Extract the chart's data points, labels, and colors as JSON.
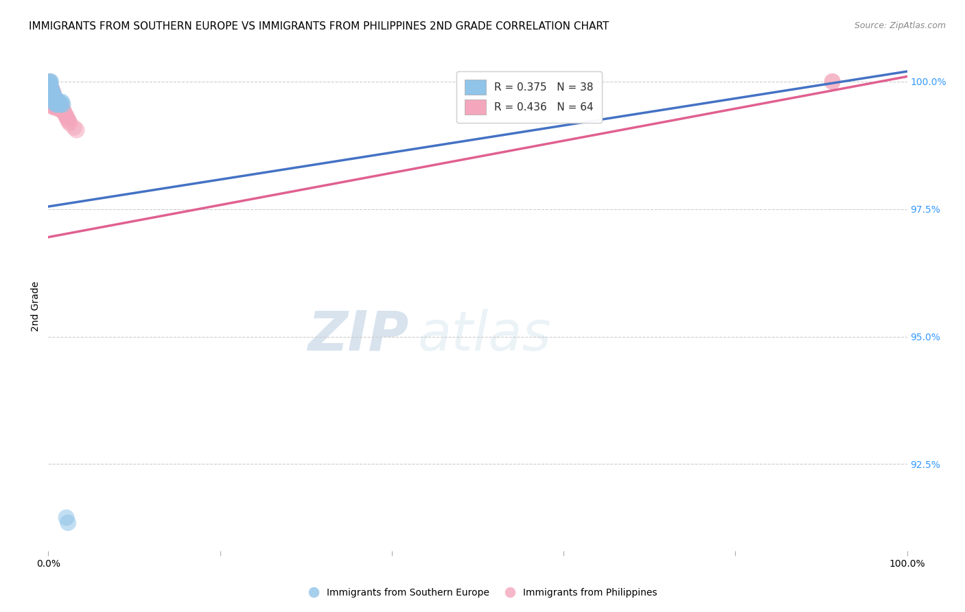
{
  "title": "IMMIGRANTS FROM SOUTHERN EUROPE VS IMMIGRANTS FROM PHILIPPINES 2ND GRADE CORRELATION CHART",
  "source": "Source: ZipAtlas.com",
  "ylabel": "2nd Grade",
  "xlim": [
    0.0,
    1.0
  ],
  "ylim": [
    0.908,
    1.004
  ],
  "ytick_labels_right": [
    "92.5%",
    "95.0%",
    "97.5%",
    "100.0%"
  ],
  "ytick_vals_right": [
    0.925,
    0.95,
    0.975,
    1.0
  ],
  "legend_blue_label": "R = 0.375   N = 38",
  "legend_pink_label": "R = 0.436   N = 64",
  "legend_bottom_blue": "Immigrants from Southern Europe",
  "legend_bottom_pink": "Immigrants from Philippines",
  "blue_color": "#90c4e8",
  "pink_color": "#f4a7bc",
  "blue_line_color": "#4472c4",
  "pink_line_color": "#e06090",
  "watermark_zip": "ZIP",
  "watermark_atlas": "atlas",
  "right_label_color": "#3399ff",
  "background_color": "#ffffff",
  "blue_scatter_x": [
    0.0005,
    0.001,
    0.001,
    0.0015,
    0.002,
    0.002,
    0.002,
    0.003,
    0.003,
    0.003,
    0.003,
    0.004,
    0.004,
    0.004,
    0.005,
    0.005,
    0.005,
    0.005,
    0.006,
    0.006,
    0.006,
    0.007,
    0.007,
    0.008,
    0.008,
    0.009,
    0.009,
    0.01,
    0.01,
    0.011,
    0.012,
    0.013,
    0.014,
    0.015,
    0.016,
    0.017,
    0.021,
    0.023
  ],
  "blue_scatter_y": [
    0.9985,
    0.999,
    0.9995,
    1.0,
    1.0,
    0.9995,
    0.9988,
    1.0,
    0.999,
    0.9985,
    0.998,
    0.9985,
    0.9975,
    0.997,
    0.998,
    0.9975,
    0.997,
    0.9965,
    0.9975,
    0.997,
    0.996,
    0.997,
    0.9965,
    0.9965,
    0.996,
    0.9965,
    0.9955,
    0.996,
    0.9955,
    0.996,
    0.996,
    0.9955,
    0.996,
    0.9955,
    0.996,
    0.9955,
    0.9145,
    0.9135
  ],
  "pink_scatter_x": [
    0.0002,
    0.0005,
    0.001,
    0.001,
    0.0015,
    0.002,
    0.002,
    0.002,
    0.003,
    0.003,
    0.003,
    0.003,
    0.003,
    0.004,
    0.004,
    0.004,
    0.004,
    0.005,
    0.005,
    0.005,
    0.005,
    0.005,
    0.006,
    0.006,
    0.006,
    0.006,
    0.006,
    0.007,
    0.007,
    0.007,
    0.007,
    0.008,
    0.008,
    0.008,
    0.009,
    0.009,
    0.009,
    0.01,
    0.01,
    0.01,
    0.011,
    0.011,
    0.012,
    0.012,
    0.013,
    0.013,
    0.014,
    0.014,
    0.015,
    0.015,
    0.016,
    0.017,
    0.018,
    0.019,
    0.02,
    0.021,
    0.022,
    0.023,
    0.024,
    0.025,
    0.03,
    0.033,
    0.913,
    0.913
  ],
  "pink_scatter_y": [
    0.9985,
    0.9982,
    0.9988,
    0.9992,
    1.0,
    0.999,
    0.9982,
    0.9975,
    0.9988,
    0.998,
    0.9975,
    0.9968,
    0.996,
    0.9985,
    0.9978,
    0.9972,
    0.9965,
    0.9982,
    0.9975,
    0.9968,
    0.996,
    0.9952,
    0.9978,
    0.9972,
    0.9965,
    0.9958,
    0.995,
    0.9972,
    0.9965,
    0.9958,
    0.995,
    0.9968,
    0.9962,
    0.9955,
    0.9965,
    0.9958,
    0.995,
    0.9962,
    0.9956,
    0.9948,
    0.9958,
    0.995,
    0.9958,
    0.995,
    0.9955,
    0.9948,
    0.9952,
    0.9945,
    0.9952,
    0.9945,
    0.9948,
    0.9945,
    0.9942,
    0.9938,
    0.9935,
    0.9932,
    0.9928,
    0.9925,
    0.9922,
    0.9918,
    0.991,
    0.9905,
    1.0,
    1.0
  ],
  "blue_line_y0": 0.9755,
  "blue_line_y1": 1.002,
  "pink_line_y0": 0.9695,
  "pink_line_y1": 1.001
}
